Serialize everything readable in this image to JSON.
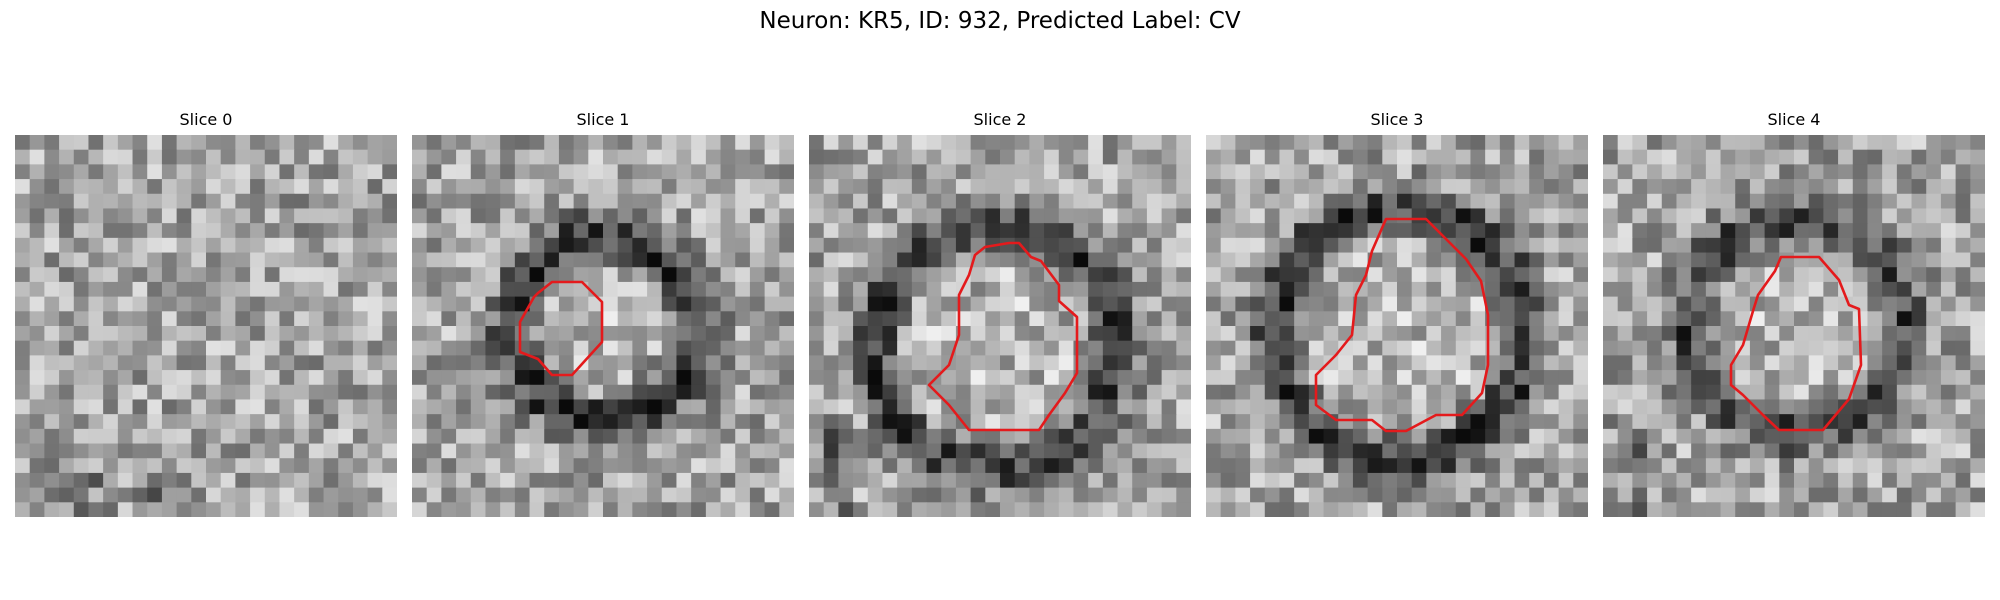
{
  "figure": {
    "title": "Neuron: KR5, ID: 932, Predicted Label: CV"
  },
  "colors": {
    "background": "#ffffff",
    "contour": "#e41a1c",
    "colormap": "grayscale"
  },
  "slices": [
    {
      "title": "Slice 0",
      "ring_strength": 0.0,
      "has_contour": false
    },
    {
      "title": "Slice 1",
      "ring_strength": 0.9,
      "has_contour": true
    },
    {
      "title": "Slice 2",
      "ring_strength": 0.8,
      "has_contour": true
    },
    {
      "title": "Slice 3",
      "ring_strength": 0.85,
      "has_contour": true
    },
    {
      "title": "Slice 4",
      "ring_strength": 0.75,
      "has_contour": true
    }
  ]
}
